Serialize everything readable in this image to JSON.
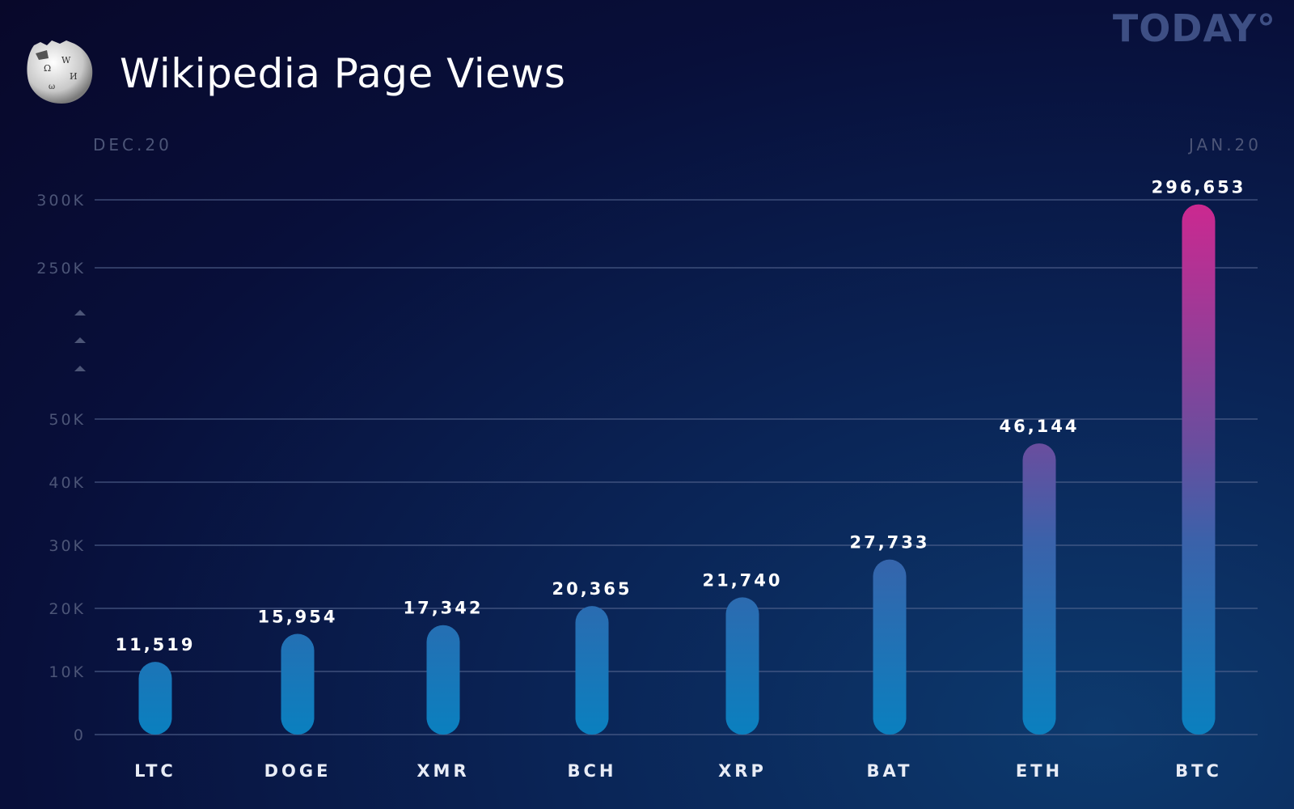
{
  "header": {
    "title": "Wikipedia Page Views",
    "brand": "TODAY°",
    "logo": "wikipedia-globe-icon"
  },
  "chart_data": {
    "type": "bar",
    "title": "Wikipedia Page Views",
    "period_start": "DEC.20",
    "period_end": "JAN.20",
    "categories": [
      "LTC",
      "DOGE",
      "XMR",
      "BCH",
      "XRP",
      "BAT",
      "ETH",
      "BTC"
    ],
    "values": [
      11519,
      15954,
      17342,
      20365,
      21740,
      27733,
      46144,
      296653
    ],
    "value_labels": [
      "11,519",
      "15,954",
      "17,342",
      "20,365",
      "21,740",
      "27,733",
      "46,144",
      "296,653"
    ],
    "y_ticks": [
      0,
      10000,
      20000,
      30000,
      40000,
      50000,
      250000,
      300000
    ],
    "y_tick_labels": [
      "0",
      "10K",
      "20K",
      "30K",
      "40K",
      "50K",
      "250K",
      "300K"
    ],
    "axis_break": [
      50000,
      250000
    ],
    "ylim": [
      0,
      300000
    ],
    "grid": true,
    "colors": {
      "bar_low": "#0a80bf",
      "bar_mid": "#6b4d9e",
      "bar_high": "#cc2890",
      "grid": "#5a6a94",
      "tick_text": "#4c5577"
    }
  }
}
